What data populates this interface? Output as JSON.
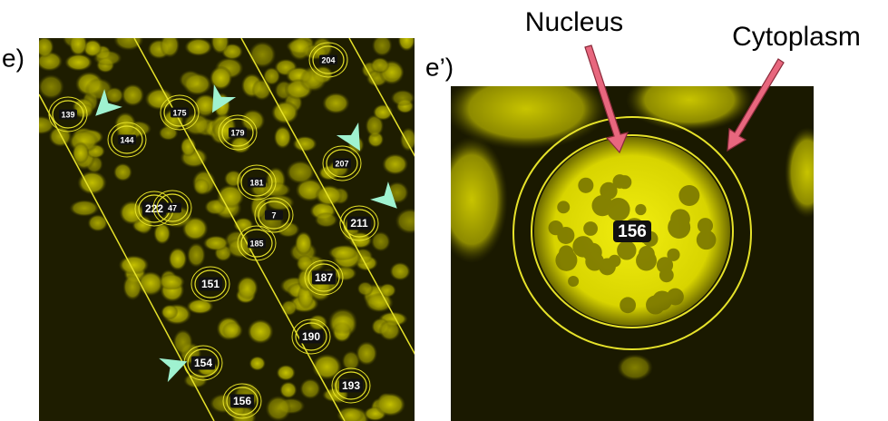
{
  "panels": [
    {
      "label": "e)",
      "cells": [
        "139",
        "144",
        "175",
        "179",
        "204",
        "207",
        "181",
        "222",
        "47",
        "7",
        "211",
        "185",
        "187",
        "151",
        "190",
        "154",
        "193",
        "156"
      ]
    },
    {
      "label": "e’)",
      "cells": [
        "156"
      ],
      "annotations": [
        "Nucleus",
        "Cytoplasm"
      ]
    }
  ]
}
